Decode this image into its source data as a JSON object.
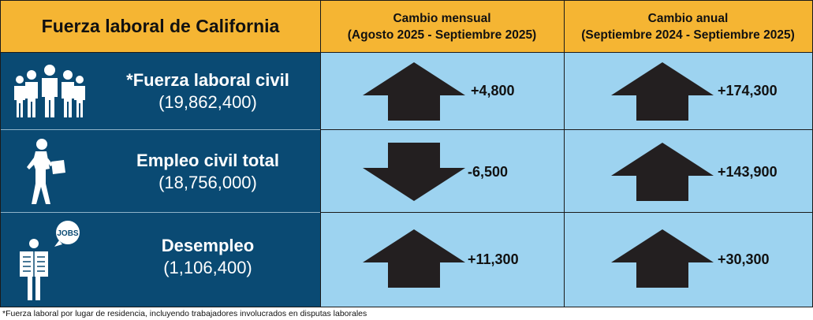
{
  "header": {
    "title": "Fuerza laboral de California",
    "monthly_title": "Cambio mensual",
    "monthly_period": "(Agosto 2025 - Septiembre 2025)",
    "annual_title": "Cambio anual",
    "annual_period": "(Septiembre 2024 - Septiembre 2025)"
  },
  "rows": [
    {
      "name": "*Fuerza laboral civil",
      "value": "(19,862,400)",
      "monthly_change": "+4,800",
      "monthly_direction": "up",
      "annual_change": "+174,300",
      "annual_direction": "up",
      "icon": "group-of-people-icon"
    },
    {
      "name": "Empleo civil total",
      "value": "(18,756,000)",
      "monthly_change": "-6,500",
      "monthly_direction": "down",
      "annual_change": "+143,900",
      "annual_direction": "up",
      "icon": "worker-with-briefcase-icon"
    },
    {
      "name": "Desempleo",
      "value": "(1,106,400)",
      "monthly_change": "+11,300",
      "monthly_direction": "up",
      "annual_change": "+30,300",
      "annual_direction": "up",
      "icon": "person-reading-jobs-newspaper-icon"
    }
  ],
  "icon_text": {
    "jobs_bubble": "JOBS"
  },
  "footnote": "*Fuerza laboral por lugar de residencia, incluyendo trabajadores involucrados en disputas laborales",
  "colors": {
    "header": "#f5b533",
    "left_panel": "#0a4a73",
    "right_panel": "#9dd3f0",
    "arrow": "#231f20"
  }
}
